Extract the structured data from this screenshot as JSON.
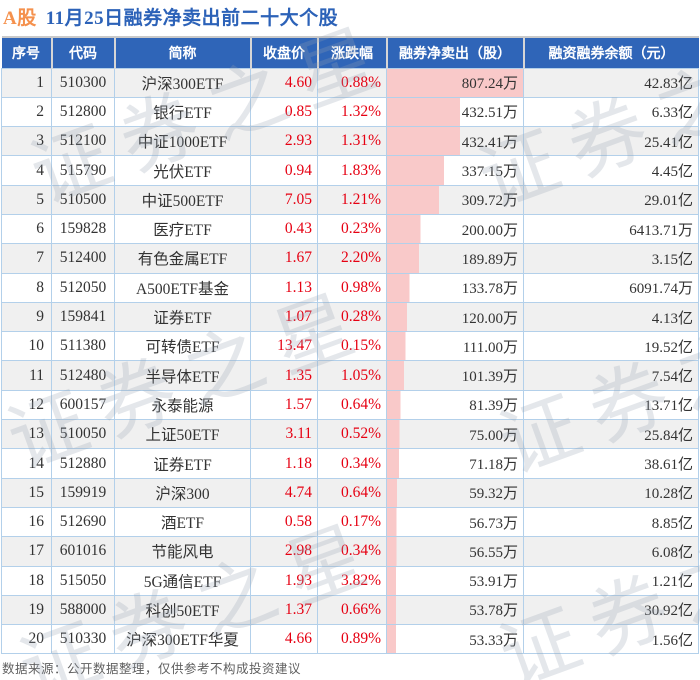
{
  "title": {
    "market": "A股",
    "text": "11月25日融券净卖出前二十大个股"
  },
  "watermark": {
    "text": "证券之星"
  },
  "footer": {
    "note": "数据来源：公开数据整理，仅供参考不构成投资建议"
  },
  "table": {
    "columns": [
      "序号",
      "代码",
      "简称",
      "收盘价",
      "涨跌幅",
      "融券净卖出（股）",
      "融资融券余额（元）"
    ],
    "rows": [
      {
        "no": "1",
        "code": "510300",
        "name": "沪深300ETF",
        "close": "4.60",
        "change": "0.88%",
        "net_sell": "807.24万",
        "net_sell_wan": 807.24,
        "balance": "42.83亿"
      },
      {
        "no": "2",
        "code": "512800",
        "name": "银行ETF",
        "close": "0.85",
        "change": "1.32%",
        "net_sell": "432.51万",
        "net_sell_wan": 432.51,
        "balance": "6.33亿"
      },
      {
        "no": "3",
        "code": "512100",
        "name": "中证1000ETF",
        "close": "2.93",
        "change": "1.31%",
        "net_sell": "432.41万",
        "net_sell_wan": 432.41,
        "balance": "25.41亿"
      },
      {
        "no": "4",
        "code": "515790",
        "name": "光伏ETF",
        "close": "0.94",
        "change": "1.83%",
        "net_sell": "337.15万",
        "net_sell_wan": 337.15,
        "balance": "4.45亿"
      },
      {
        "no": "5",
        "code": "510500",
        "name": "中证500ETF",
        "close": "7.05",
        "change": "1.21%",
        "net_sell": "309.72万",
        "net_sell_wan": 309.72,
        "balance": "29.01亿"
      },
      {
        "no": "6",
        "code": "159828",
        "name": "医疗ETF",
        "close": "0.43",
        "change": "0.23%",
        "net_sell": "200.00万",
        "net_sell_wan": 200.0,
        "balance": "6413.71万"
      },
      {
        "no": "7",
        "code": "512400",
        "name": "有色金属ETF",
        "close": "1.67",
        "change": "2.20%",
        "net_sell": "189.89万",
        "net_sell_wan": 189.89,
        "balance": "3.15亿"
      },
      {
        "no": "8",
        "code": "512050",
        "name": "A500ETF基金",
        "close": "1.13",
        "change": "0.98%",
        "net_sell": "133.78万",
        "net_sell_wan": 133.78,
        "balance": "6091.74万"
      },
      {
        "no": "9",
        "code": "159841",
        "name": "证券ETF",
        "close": "1.07",
        "change": "0.28%",
        "net_sell": "120.00万",
        "net_sell_wan": 120.0,
        "balance": "4.13亿"
      },
      {
        "no": "10",
        "code": "511380",
        "name": "可转债ETF",
        "close": "13.47",
        "change": "0.15%",
        "net_sell": "111.00万",
        "net_sell_wan": 111.0,
        "balance": "19.52亿"
      },
      {
        "no": "11",
        "code": "512480",
        "name": "半导体ETF",
        "close": "1.35",
        "change": "1.05%",
        "net_sell": "101.39万",
        "net_sell_wan": 101.39,
        "balance": "7.54亿"
      },
      {
        "no": "12",
        "code": "600157",
        "name": "永泰能源",
        "close": "1.57",
        "change": "0.64%",
        "net_sell": "81.39万",
        "net_sell_wan": 81.39,
        "balance": "13.71亿"
      },
      {
        "no": "13",
        "code": "510050",
        "name": "上证50ETF",
        "close": "3.11",
        "change": "0.52%",
        "net_sell": "75.00万",
        "net_sell_wan": 75.0,
        "balance": "25.84亿"
      },
      {
        "no": "14",
        "code": "512880",
        "name": "证券ETF",
        "close": "1.18",
        "change": "0.34%",
        "net_sell": "71.18万",
        "net_sell_wan": 71.18,
        "balance": "38.61亿"
      },
      {
        "no": "15",
        "code": "159919",
        "name": "沪深300",
        "close": "4.74",
        "change": "0.64%",
        "net_sell": "59.32万",
        "net_sell_wan": 59.32,
        "balance": "10.28亿"
      },
      {
        "no": "16",
        "code": "512690",
        "name": "酒ETF",
        "close": "0.58",
        "change": "0.17%",
        "net_sell": "56.73万",
        "net_sell_wan": 56.73,
        "balance": "8.85亿"
      },
      {
        "no": "17",
        "code": "601016",
        "name": "节能风电",
        "close": "2.98",
        "change": "0.34%",
        "net_sell": "56.55万",
        "net_sell_wan": 56.55,
        "balance": "6.08亿"
      },
      {
        "no": "18",
        "code": "515050",
        "name": "5G通信ETF",
        "close": "1.93",
        "change": "3.82%",
        "net_sell": "53.91万",
        "net_sell_wan": 53.91,
        "balance": "1.21亿"
      },
      {
        "no": "19",
        "code": "588000",
        "name": "科创50ETF",
        "close": "1.37",
        "change": "0.66%",
        "net_sell": "53.78万",
        "net_sell_wan": 53.78,
        "balance": "30.92亿"
      },
      {
        "no": "20",
        "code": "510330",
        "name": "沪深300ETF华夏",
        "close": "4.66",
        "change": "0.89%",
        "net_sell": "53.33万",
        "net_sell_wan": 53.33,
        "balance": "1.56亿"
      }
    ]
  },
  "colors": {
    "header_bg": "#2f65b8",
    "title_blue": "#2c62b8",
    "title_orange": "#f5914d",
    "up_red": "#e60012",
    "bar_pink": "#f9c9c9",
    "odd_row_bg": "#f0f0f0",
    "grid_blue": "#b3d0ea"
  },
  "chart_data": {
    "type": "table",
    "title": "A股 11月25日融券净卖出前二十大个股",
    "columns": [
      "序号",
      "代码",
      "简称",
      "收盘价",
      "涨跌幅",
      "融券净卖出（股）",
      "融资融券余额（元）"
    ],
    "bar_column": "融券净卖出（股）",
    "bar_unit": "万股",
    "bar_values": [
      807.24,
      432.51,
      432.41,
      337.15,
      309.72,
      200.0,
      189.89,
      133.78,
      120.0,
      111.0,
      101.39,
      81.39,
      75.0,
      71.18,
      59.32,
      56.73,
      56.55,
      53.91,
      53.78,
      53.33
    ],
    "bar_max": 807.24,
    "rows": [
      [
        "1",
        "510300",
        "沪深300ETF",
        "4.60",
        "0.88%",
        "807.24万",
        "42.83亿"
      ],
      [
        "2",
        "512800",
        "银行ETF",
        "0.85",
        "1.32%",
        "432.51万",
        "6.33亿"
      ],
      [
        "3",
        "512100",
        "中证1000ETF",
        "2.93",
        "1.31%",
        "432.41万",
        "25.41亿"
      ],
      [
        "4",
        "515790",
        "光伏ETF",
        "0.94",
        "1.83%",
        "337.15万",
        "4.45亿"
      ],
      [
        "5",
        "510500",
        "中证500ETF",
        "7.05",
        "1.21%",
        "309.72万",
        "29.01亿"
      ],
      [
        "6",
        "159828",
        "医疗ETF",
        "0.43",
        "0.23%",
        "200.00万",
        "6413.71万"
      ],
      [
        "7",
        "512400",
        "有色金属ETF",
        "1.67",
        "2.20%",
        "189.89万",
        "3.15亿"
      ],
      [
        "8",
        "512050",
        "A500ETF基金",
        "1.13",
        "0.98%",
        "133.78万",
        "6091.74万"
      ],
      [
        "9",
        "159841",
        "证券ETF",
        "1.07",
        "0.28%",
        "120.00万",
        "4.13亿"
      ],
      [
        "10",
        "511380",
        "可转债ETF",
        "13.47",
        "0.15%",
        "111.00万",
        "19.52亿"
      ],
      [
        "11",
        "512480",
        "半导体ETF",
        "1.35",
        "1.05%",
        "101.39万",
        "7.54亿"
      ],
      [
        "12",
        "600157",
        "永泰能源",
        "1.57",
        "0.64%",
        "81.39万",
        "13.71亿"
      ],
      [
        "13",
        "510050",
        "上证50ETF",
        "3.11",
        "0.52%",
        "75.00万",
        "25.84亿"
      ],
      [
        "14",
        "512880",
        "证券ETF",
        "1.18",
        "0.34%",
        "71.18万",
        "38.61亿"
      ],
      [
        "15",
        "159919",
        "沪深300",
        "4.74",
        "0.64%",
        "59.32万",
        "10.28亿"
      ],
      [
        "16",
        "512690",
        "酒ETF",
        "0.58",
        "0.17%",
        "56.73万",
        "8.85亿"
      ],
      [
        "17",
        "601016",
        "节能风电",
        "2.98",
        "0.34%",
        "56.55万",
        "6.08亿"
      ],
      [
        "18",
        "515050",
        "5G通信ETF",
        "1.93",
        "3.82%",
        "53.91万",
        "1.21亿"
      ],
      [
        "19",
        "588000",
        "科创50ETF",
        "1.37",
        "0.66%",
        "53.78万",
        "30.92亿"
      ],
      [
        "20",
        "510330",
        "沪深300ETF华夏",
        "4.66",
        "0.89%",
        "53.33万",
        "1.56亿"
      ]
    ]
  }
}
